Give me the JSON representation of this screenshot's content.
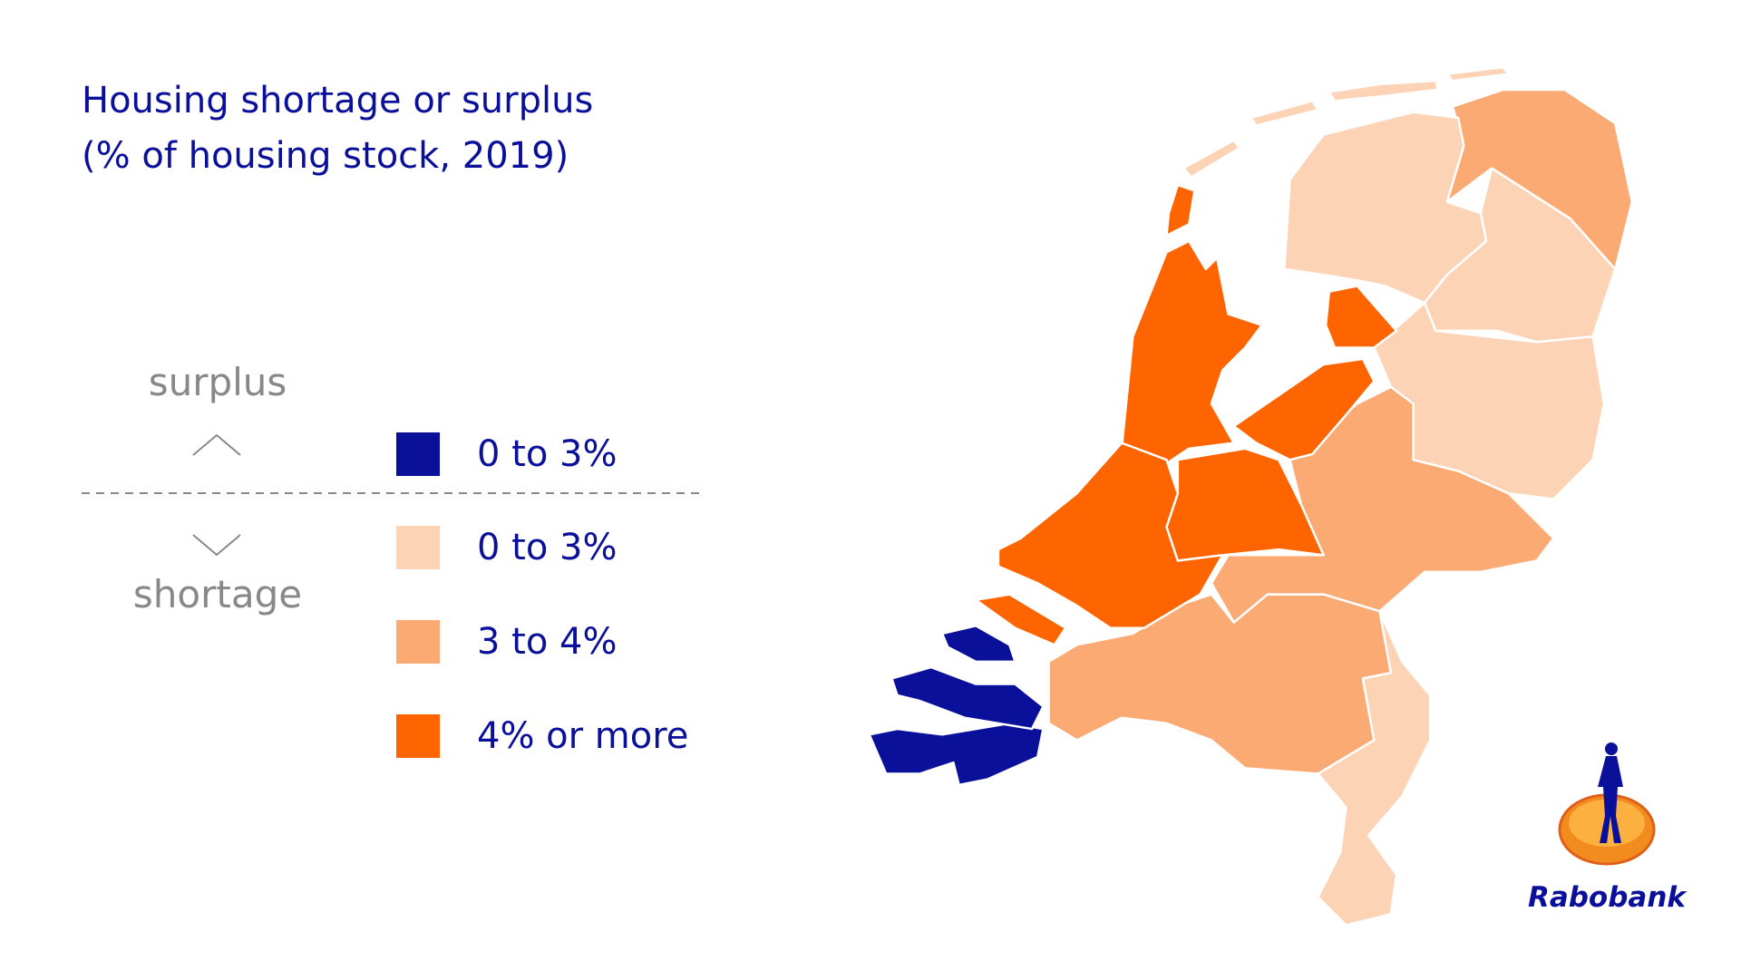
{
  "header": {
    "title": [
      "Housing shortage or surplus",
      "(% of housing stock, 2019)"
    ]
  },
  "scale_labels": {
    "up": "surplus",
    "down": "shortage"
  },
  "legend": [
    {
      "label": "0 to 3%",
      "color": "#0a109a"
    },
    {
      "label": "0 to 3%",
      "color": "#fdd3b6"
    },
    {
      "label": "3 to 4%",
      "color": "#fbaa74"
    },
    {
      "label": "4% or more",
      "color": "#fe6400"
    }
  ],
  "logo": "Rabobank"
}
